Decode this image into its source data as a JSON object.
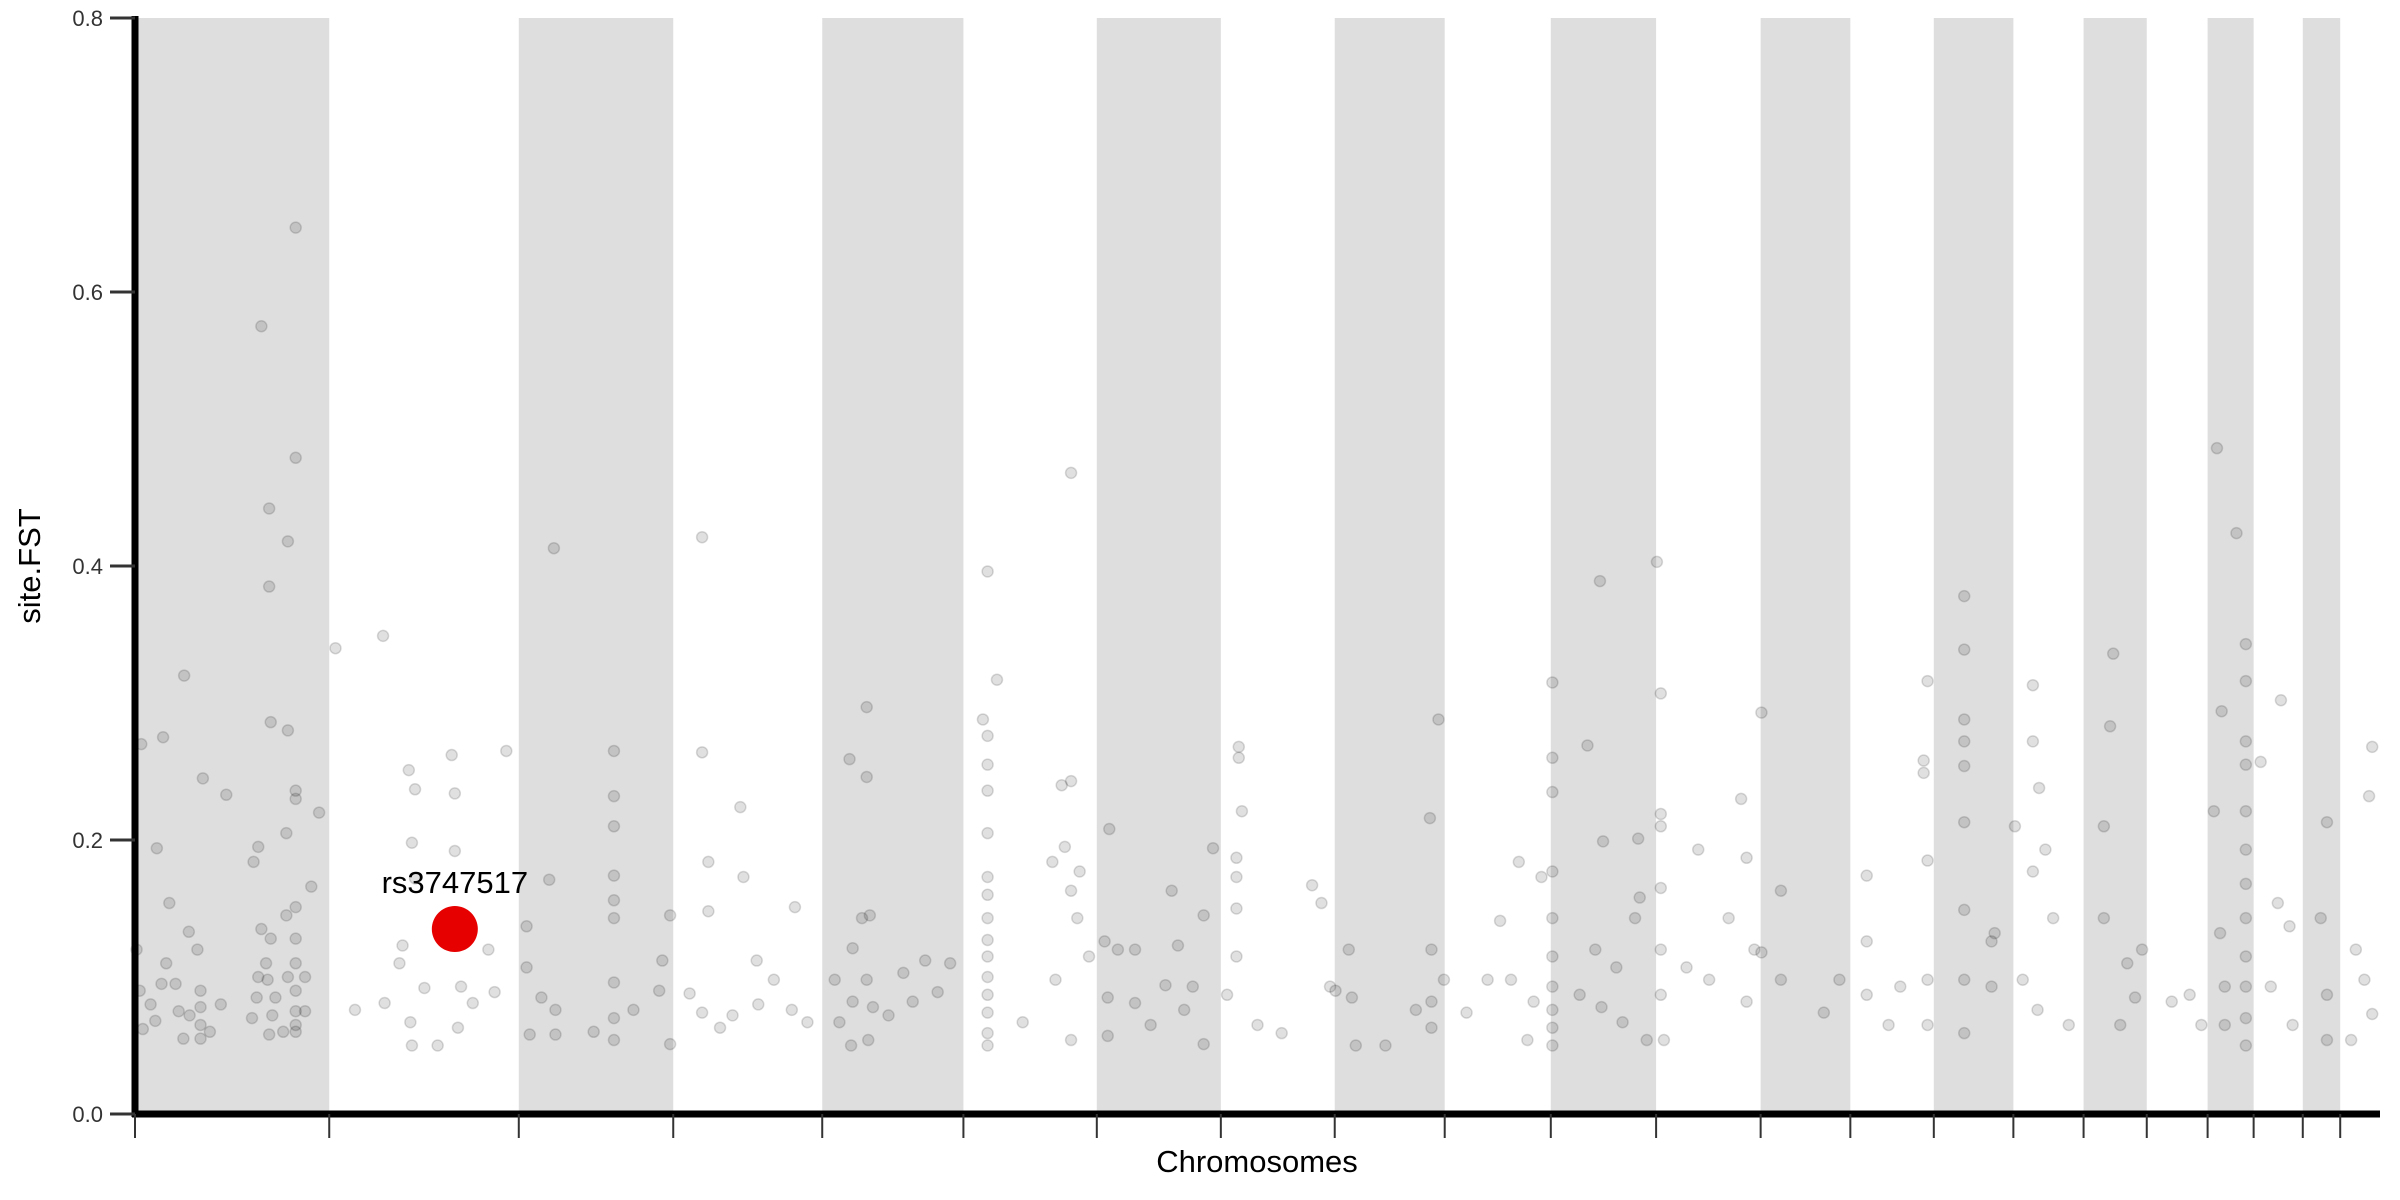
{
  "chart_data": {
    "type": "scatter",
    "title": "",
    "xlabel": "Chromosomes",
    "ylabel": "site.FST",
    "ylim": [
      0,
      0.8
    ],
    "yticks": [
      "0.0",
      "0.2",
      "0.4",
      "0.6",
      "0.8"
    ],
    "ytick_values": [
      0,
      0.2,
      0.4,
      0.6,
      0.8
    ],
    "x_tick_labels": "none",
    "grid": false,
    "legend": "none",
    "chromosome_bands": "alternating gray / white",
    "chromosome_lengths_mb": [
      249,
      243,
      198,
      191,
      181,
      171,
      159,
      146,
      141,
      136,
      135,
      134,
      115,
      107,
      102,
      90,
      81,
      78,
      59,
      63,
      48,
      51
    ],
    "point_fields": [
      "chromosome",
      "position_mb",
      "site_fst"
    ],
    "colors": {
      "points": "#000000",
      "point_alpha": 0.12,
      "band": "#dedede",
      "highlight": "#e60000"
    },
    "highlight": {
      "label": "rs3747517",
      "chromosome": 2,
      "position_mb": 161,
      "site_fst": 0.135
    },
    "points": [
      [
        1,
        8,
        0.27
      ],
      [
        1,
        36,
        0.275
      ],
      [
        1,
        63,
        0.32
      ],
      [
        1,
        87,
        0.245
      ],
      [
        1,
        117,
        0.233
      ],
      [
        1,
        162,
        0.575
      ],
      [
        1,
        172,
        0.442
      ],
      [
        1,
        172,
        0.385
      ],
      [
        1,
        174,
        0.286
      ],
      [
        1,
        196,
        0.418
      ],
      [
        1,
        206,
        0.647
      ],
      [
        1,
        206,
        0.479
      ],
      [
        1,
        196,
        0.28
      ],
      [
        1,
        206,
        0.236
      ],
      [
        1,
        206,
        0.23
      ],
      [
        1,
        236,
        0.22
      ],
      [
        1,
        28,
        0.194
      ],
      [
        1,
        158,
        0.195
      ],
      [
        1,
        152,
        0.184
      ],
      [
        1,
        194,
        0.205
      ],
      [
        1,
        226,
        0.166
      ],
      [
        1,
        44,
        0.154
      ],
      [
        1,
        69,
        0.133
      ],
      [
        1,
        162,
        0.135
      ],
      [
        1,
        174,
        0.128
      ],
      [
        1,
        194,
        0.145
      ],
      [
        1,
        206,
        0.151
      ],
      [
        1,
        206,
        0.128
      ],
      [
        1,
        2,
        0.12
      ],
      [
        1,
        6,
        0.09
      ],
      [
        1,
        10,
        0.062
      ],
      [
        1,
        20,
        0.08
      ],
      [
        1,
        26,
        0.068
      ],
      [
        1,
        34,
        0.095
      ],
      [
        1,
        40,
        0.11
      ],
      [
        1,
        52,
        0.095
      ],
      [
        1,
        56,
        0.075
      ],
      [
        1,
        62,
        0.055
      ],
      [
        1,
        70,
        0.072
      ],
      [
        1,
        80,
        0.12
      ],
      [
        1,
        84,
        0.09
      ],
      [
        1,
        84,
        0.078
      ],
      [
        1,
        84,
        0.065
      ],
      [
        1,
        84,
        0.055
      ],
      [
        1,
        96,
        0.06
      ],
      [
        1,
        110,
        0.08
      ],
      [
        1,
        150,
        0.07
      ],
      [
        1,
        156,
        0.085
      ],
      [
        1,
        158,
        0.1
      ],
      [
        1,
        168,
        0.11
      ],
      [
        1,
        170,
        0.098
      ],
      [
        1,
        172,
        0.058
      ],
      [
        1,
        176,
        0.072
      ],
      [
        1,
        180,
        0.085
      ],
      [
        1,
        190,
        0.06
      ],
      [
        1,
        196,
        0.1
      ],
      [
        1,
        206,
        0.09
      ],
      [
        1,
        206,
        0.075
      ],
      [
        1,
        206,
        0.065
      ],
      [
        1,
        206,
        0.06
      ],
      [
        1,
        206,
        0.11
      ],
      [
        1,
        218,
        0.075
      ],
      [
        1,
        218,
        0.1
      ],
      [
        2,
        8,
        0.34
      ],
      [
        2,
        69,
        0.349
      ],
      [
        2,
        102,
        0.251
      ],
      [
        2,
        157,
        0.262
      ],
      [
        2,
        110,
        0.237
      ],
      [
        2,
        161,
        0.234
      ],
      [
        2,
        106,
        0.198
      ],
      [
        2,
        161,
        0.192
      ],
      [
        2,
        227,
        0.265
      ],
      [
        2,
        33,
        0.076
      ],
      [
        2,
        71,
        0.081
      ],
      [
        2,
        122,
        0.092
      ],
      [
        2,
        104,
        0.067
      ],
      [
        2,
        169,
        0.093
      ],
      [
        2,
        184,
        0.081
      ],
      [
        2,
        204,
        0.12
      ],
      [
        2,
        212,
        0.089
      ],
      [
        2,
        106,
        0.05
      ],
      [
        2,
        139,
        0.05
      ],
      [
        2,
        165,
        0.063
      ],
      [
        2,
        90,
        0.11
      ],
      [
        2,
        176,
        0.135
      ],
      [
        2,
        110,
        0.172
      ],
      [
        2,
        94,
        0.123
      ],
      [
        3,
        45,
        0.413
      ],
      [
        3,
        10,
        0.137
      ],
      [
        3,
        39,
        0.171
      ],
      [
        3,
        10,
        0.107
      ],
      [
        3,
        29,
        0.085
      ],
      [
        3,
        14,
        0.058
      ],
      [
        3,
        47,
        0.058
      ],
      [
        3,
        47,
        0.076
      ],
      [
        3,
        122,
        0.265
      ],
      [
        3,
        122,
        0.232
      ],
      [
        3,
        122,
        0.21
      ],
      [
        3,
        122,
        0.174
      ],
      [
        3,
        122,
        0.156
      ],
      [
        3,
        122,
        0.143
      ],
      [
        3,
        122,
        0.096
      ],
      [
        3,
        122,
        0.07
      ],
      [
        3,
        122,
        0.054
      ],
      [
        3,
        96,
        0.06
      ],
      [
        3,
        147,
        0.076
      ],
      [
        3,
        184,
        0.112
      ],
      [
        3,
        194,
        0.145
      ],
      [
        3,
        180,
        0.09
      ],
      [
        3,
        194,
        0.051
      ],
      [
        4,
        37,
        0.421
      ],
      [
        4,
        37,
        0.264
      ],
      [
        4,
        45,
        0.184
      ],
      [
        4,
        86,
        0.224
      ],
      [
        4,
        90,
        0.173
      ],
      [
        4,
        45,
        0.148
      ],
      [
        4,
        107,
        0.112
      ],
      [
        4,
        37,
        0.074
      ],
      [
        4,
        76,
        0.072
      ],
      [
        4,
        109,
        0.08
      ],
      [
        4,
        152,
        0.076
      ],
      [
        4,
        156,
        0.151
      ],
      [
        4,
        129,
        0.098
      ],
      [
        4,
        172,
        0.067
      ],
      [
        4,
        60,
        0.063
      ],
      [
        4,
        21,
        0.088
      ],
      [
        5,
        35,
        0.259
      ],
      [
        5,
        57,
        0.297
      ],
      [
        5,
        57,
        0.246
      ],
      [
        5,
        39,
        0.121
      ],
      [
        5,
        51,
        0.143
      ],
      [
        5,
        61,
        0.145
      ],
      [
        5,
        16,
        0.098
      ],
      [
        5,
        39,
        0.082
      ],
      [
        5,
        57,
        0.098
      ],
      [
        5,
        65,
        0.078
      ],
      [
        5,
        22,
        0.067
      ],
      [
        5,
        104,
        0.103
      ],
      [
        5,
        132,
        0.112
      ],
      [
        5,
        164,
        0.11
      ],
      [
        5,
        148,
        0.089
      ],
      [
        5,
        116,
        0.082
      ],
      [
        5,
        85,
        0.072
      ],
      [
        5,
        37,
        0.05
      ],
      [
        5,
        59,
        0.054
      ],
      [
        6,
        31,
        0.396
      ],
      [
        6,
        43,
        0.317
      ],
      [
        6,
        25,
        0.288
      ],
      [
        6,
        31,
        0.276
      ],
      [
        6,
        31,
        0.255
      ],
      [
        6,
        31,
        0.236
      ],
      [
        6,
        31,
        0.205
      ],
      [
        6,
        31,
        0.173
      ],
      [
        6,
        31,
        0.16
      ],
      [
        6,
        31,
        0.143
      ],
      [
        6,
        31,
        0.127
      ],
      [
        6,
        31,
        0.115
      ],
      [
        6,
        31,
        0.1
      ],
      [
        6,
        31,
        0.087
      ],
      [
        6,
        31,
        0.074
      ],
      [
        6,
        31,
        0.059
      ],
      [
        6,
        31,
        0.05
      ],
      [
        6,
        138,
        0.468
      ],
      [
        6,
        126,
        0.24
      ],
      [
        6,
        138,
        0.243
      ],
      [
        6,
        149,
        0.177
      ],
      [
        6,
        138,
        0.163
      ],
      [
        6,
        146,
        0.143
      ],
      [
        6,
        130,
        0.195
      ],
      [
        6,
        114,
        0.184
      ],
      [
        6,
        161,
        0.115
      ],
      [
        6,
        76,
        0.067
      ],
      [
        6,
        118,
        0.098
      ],
      [
        6,
        138,
        0.054
      ],
      [
        7,
        16,
        0.208
      ],
      [
        7,
        10,
        0.126
      ],
      [
        7,
        27,
        0.12
      ],
      [
        7,
        14,
        0.085
      ],
      [
        7,
        14,
        0.057
      ],
      [
        7,
        49,
        0.12
      ],
      [
        7,
        49,
        0.081
      ],
      [
        7,
        88,
        0.094
      ],
      [
        7,
        96,
        0.163
      ],
      [
        7,
        104,
        0.123
      ],
      [
        7,
        112,
        0.076
      ],
      [
        7,
        137,
        0.145
      ],
      [
        7,
        137,
        0.051
      ],
      [
        7,
        149,
        0.194
      ],
      [
        7,
        69,
        0.065
      ],
      [
        7,
        123,
        0.093
      ],
      [
        8,
        23,
        0.268
      ],
      [
        8,
        23,
        0.26
      ],
      [
        8,
        27,
        0.221
      ],
      [
        8,
        20,
        0.187
      ],
      [
        8,
        20,
        0.173
      ],
      [
        8,
        20,
        0.15
      ],
      [
        8,
        20,
        0.115
      ],
      [
        8,
        8,
        0.087
      ],
      [
        8,
        47,
        0.065
      ],
      [
        8,
        78,
        0.059
      ],
      [
        8,
        117,
        0.167
      ],
      [
        8,
        129,
        0.154
      ],
      [
        8,
        140,
        0.093
      ],
      [
        9,
        1,
        0.09
      ],
      [
        9,
        18,
        0.12
      ],
      [
        9,
        22,
        0.085
      ],
      [
        9,
        27,
        0.05
      ],
      [
        9,
        65,
        0.05
      ],
      [
        9,
        122,
        0.216
      ],
      [
        9,
        133,
        0.288
      ],
      [
        9,
        124,
        0.12
      ],
      [
        9,
        124,
        0.082
      ],
      [
        9,
        124,
        0.063
      ],
      [
        9,
        104,
        0.076
      ],
      [
        9,
        140,
        0.098
      ],
      [
        10,
        28,
        0.074
      ],
      [
        10,
        55,
        0.098
      ],
      [
        10,
        71,
        0.141
      ],
      [
        10,
        95,
        0.184
      ],
      [
        10,
        106,
        0.054
      ],
      [
        10,
        124,
        0.173
      ],
      [
        10,
        114,
        0.082
      ],
      [
        10,
        85,
        0.098
      ],
      [
        11,
        2,
        0.315
      ],
      [
        11,
        2,
        0.26
      ],
      [
        11,
        2,
        0.235
      ],
      [
        11,
        2,
        0.177
      ],
      [
        11,
        2,
        0.143
      ],
      [
        11,
        2,
        0.115
      ],
      [
        11,
        2,
        0.093
      ],
      [
        11,
        2,
        0.076
      ],
      [
        11,
        2,
        0.063
      ],
      [
        11,
        2,
        0.05
      ],
      [
        11,
        47,
        0.269
      ],
      [
        11,
        63,
        0.389
      ],
      [
        11,
        67,
        0.199
      ],
      [
        11,
        57,
        0.12
      ],
      [
        11,
        65,
        0.078
      ],
      [
        11,
        84,
        0.107
      ],
      [
        11,
        108,
        0.143
      ],
      [
        11,
        112,
        0.201
      ],
      [
        11,
        114,
        0.158
      ],
      [
        11,
        123,
        0.054
      ],
      [
        11,
        92,
        0.067
      ],
      [
        11,
        37,
        0.087
      ],
      [
        12,
        1,
        0.403
      ],
      [
        12,
        6,
        0.307
      ],
      [
        12,
        6,
        0.219
      ],
      [
        12,
        6,
        0.21
      ],
      [
        12,
        6,
        0.165
      ],
      [
        12,
        6,
        0.12
      ],
      [
        12,
        6,
        0.087
      ],
      [
        12,
        10,
        0.054
      ],
      [
        12,
        39,
        0.107
      ],
      [
        12,
        54,
        0.193
      ],
      [
        12,
        68,
        0.098
      ],
      [
        12,
        93,
        0.143
      ],
      [
        12,
        109,
        0.23
      ],
      [
        12,
        116,
        0.187
      ],
      [
        12,
        116,
        0.082
      ],
      [
        12,
        126,
        0.12
      ],
      [
        13,
        1,
        0.293
      ],
      [
        13,
        1,
        0.118
      ],
      [
        13,
        26,
        0.163
      ],
      [
        13,
        26,
        0.098
      ],
      [
        13,
        81,
        0.074
      ],
      [
        13,
        101,
        0.098
      ],
      [
        14,
        21,
        0.174
      ],
      [
        14,
        21,
        0.126
      ],
      [
        14,
        21,
        0.087
      ],
      [
        14,
        49,
        0.065
      ],
      [
        14,
        64,
        0.093
      ],
      [
        14,
        94,
        0.258
      ],
      [
        14,
        94,
        0.249
      ],
      [
        14,
        99,
        0.316
      ],
      [
        14,
        99,
        0.185
      ],
      [
        14,
        99,
        0.098
      ],
      [
        14,
        99,
        0.065
      ],
      [
        15,
        39,
        0.378
      ],
      [
        15,
        39,
        0.339
      ],
      [
        15,
        39,
        0.288
      ],
      [
        15,
        39,
        0.272
      ],
      [
        15,
        39,
        0.254
      ],
      [
        15,
        39,
        0.213
      ],
      [
        15,
        39,
        0.149
      ],
      [
        15,
        39,
        0.098
      ],
      [
        15,
        39,
        0.059
      ],
      [
        15,
        74,
        0.126
      ],
      [
        15,
        74,
        0.093
      ],
      [
        15,
        78,
        0.132
      ],
      [
        16,
        2,
        0.21
      ],
      [
        16,
        25,
        0.313
      ],
      [
        16,
        25,
        0.272
      ],
      [
        16,
        33,
        0.238
      ],
      [
        16,
        25,
        0.177
      ],
      [
        16,
        41,
        0.193
      ],
      [
        16,
        51,
        0.143
      ],
      [
        16,
        12,
        0.098
      ],
      [
        16,
        31,
        0.076
      ],
      [
        16,
        71,
        0.065
      ],
      [
        17,
        26,
        0.21
      ],
      [
        17,
        26,
        0.143
      ],
      [
        17,
        38,
        0.336
      ],
      [
        17,
        34,
        0.283
      ],
      [
        17,
        56,
        0.11
      ],
      [
        17,
        66,
        0.085
      ],
      [
        17,
        75,
        0.12
      ],
      [
        17,
        47,
        0.065
      ],
      [
        18,
        32,
        0.082
      ],
      [
        18,
        55,
        0.087
      ],
      [
        18,
        70,
        0.065
      ],
      [
        19,
        12,
        0.486
      ],
      [
        19,
        18,
        0.294
      ],
      [
        19,
        8,
        0.221
      ],
      [
        19,
        37,
        0.424
      ],
      [
        19,
        49,
        0.343
      ],
      [
        19,
        49,
        0.316
      ],
      [
        19,
        49,
        0.272
      ],
      [
        19,
        49,
        0.255
      ],
      [
        19,
        49,
        0.221
      ],
      [
        19,
        49,
        0.193
      ],
      [
        19,
        49,
        0.168
      ],
      [
        19,
        49,
        0.143
      ],
      [
        19,
        49,
        0.115
      ],
      [
        19,
        49,
        0.093
      ],
      [
        19,
        49,
        0.07
      ],
      [
        19,
        49,
        0.05
      ],
      [
        19,
        16,
        0.132
      ],
      [
        19,
        22,
        0.093
      ],
      [
        19,
        22,
        0.065
      ],
      [
        20,
        9,
        0.257
      ],
      [
        20,
        35,
        0.302
      ],
      [
        20,
        31,
        0.154
      ],
      [
        20,
        46,
        0.137
      ],
      [
        20,
        22,
        0.093
      ],
      [
        20,
        50,
        0.065
      ],
      [
        21,
        31,
        0.213
      ],
      [
        21,
        23,
        0.143
      ],
      [
        21,
        31,
        0.087
      ],
      [
        21,
        31,
        0.054
      ],
      [
        22,
        41,
        0.268
      ],
      [
        22,
        37,
        0.232
      ],
      [
        22,
        20,
        0.12
      ],
      [
        22,
        31,
        0.098
      ],
      [
        22,
        41,
        0.073
      ],
      [
        22,
        14,
        0.054
      ]
    ]
  }
}
